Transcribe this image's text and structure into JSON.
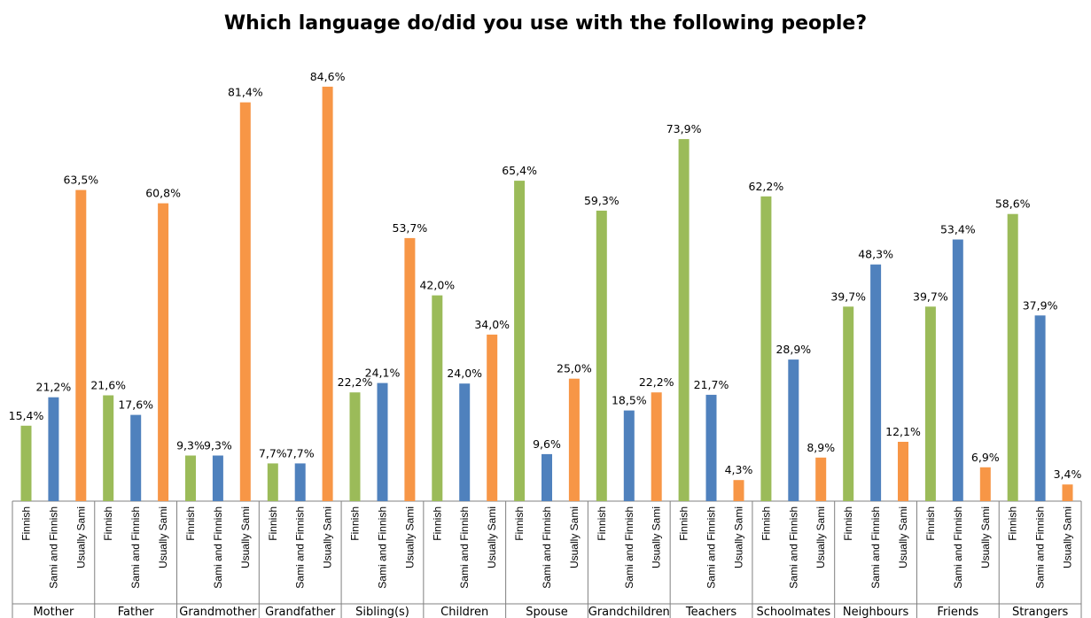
{
  "chart_data": {
    "type": "bar",
    "title": "Which language do/did you use with the following people?",
    "xlabel": "",
    "ylabel": "",
    "ylim": [
      0,
      90
    ],
    "grid": false,
    "legend": "none",
    "categories": [
      "Mother",
      "Father",
      "Grandmother",
      "Grandfather",
      "Sibling(s)",
      "Children",
      "Spouse",
      "Grandchildren",
      "Teachers",
      "Schoolmates",
      "Neighbours",
      "Friends",
      "Strangers"
    ],
    "series": [
      {
        "name": "Finnish",
        "color": "#9BBB59",
        "values": [
          15.4,
          21.6,
          9.3,
          7.7,
          22.2,
          42.0,
          65.4,
          59.3,
          73.9,
          62.2,
          39.7,
          39.7,
          58.6
        ],
        "labels": [
          "15,4%",
          "21,6%",
          "9,3%",
          "7,7%",
          "22,2%",
          "42,0%",
          "65,4%",
          "59,3%",
          "73,9%",
          "62,2%",
          "39,7%",
          "39,7%",
          "58,6%"
        ]
      },
      {
        "name": "Sami and Finnish",
        "color": "#4F81BD",
        "values": [
          21.2,
          17.6,
          9.3,
          7.7,
          24.1,
          24.0,
          9.6,
          18.5,
          21.7,
          28.9,
          48.3,
          53.4,
          37.9
        ],
        "labels": [
          "21,2%",
          "17,6%",
          "9,3%",
          "7,7%",
          "24,1%",
          "24,0%",
          "9,6%",
          "18,5%",
          "21,7%",
          "28,9%",
          "48,3%",
          "53,4%",
          "37,9%"
        ]
      },
      {
        "name": "Usually Sami",
        "color": "#F79646",
        "values": [
          63.5,
          60.8,
          81.4,
          84.6,
          53.7,
          34.0,
          25.0,
          22.2,
          4.3,
          8.9,
          12.1,
          6.9,
          3.4
        ],
        "labels": [
          "63,5%",
          "60,8%",
          "81,4%",
          "84,6%",
          "53,7%",
          "34,0%",
          "25,0%",
          "22,2%",
          "4,3%",
          "8,9%",
          "12,1%",
          "6,9%",
          "3,4%"
        ]
      }
    ]
  }
}
